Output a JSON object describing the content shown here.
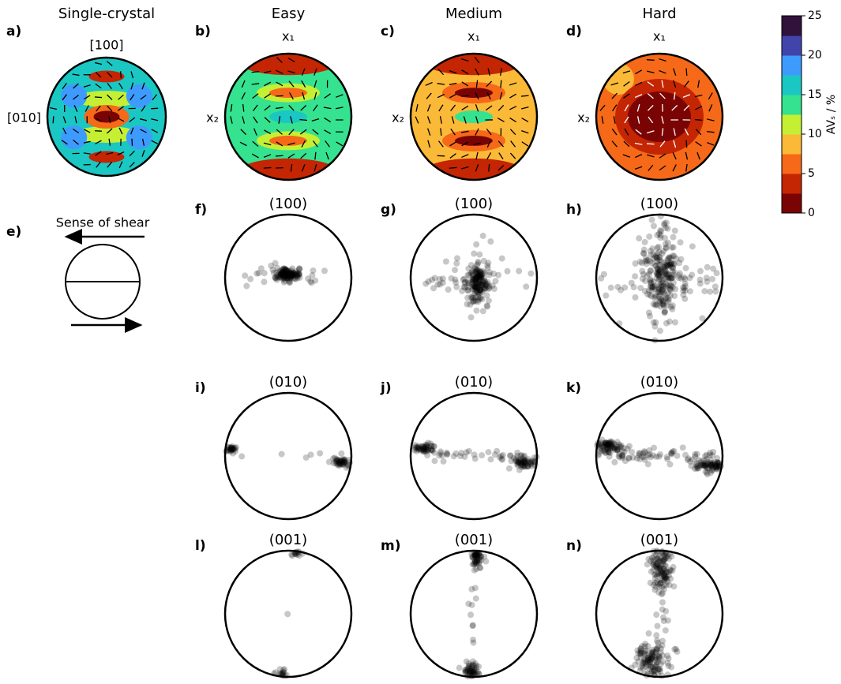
{
  "velocity_panels": [
    {
      "label": "a)",
      "title": "Single-crystal",
      "north": "[100]",
      "west": "[010]"
    },
    {
      "label": "b)",
      "title": "Easy",
      "north": "x₁",
      "west": "x₂"
    },
    {
      "label": "c)",
      "title": "Medium",
      "north": "x₁",
      "west": "x₂"
    },
    {
      "label": "d)",
      "title": "Hard",
      "north": "x₁",
      "west": "x₂"
    }
  ],
  "shear_panel": {
    "label": "e)",
    "title": "Sense of shear"
  },
  "pole_panels": [
    {
      "label": "f)",
      "title": "(100)"
    },
    {
      "label": "g)",
      "title": "(100)"
    },
    {
      "label": "h)",
      "title": "(100)"
    },
    {
      "label": "i)",
      "title": "(010)"
    },
    {
      "label": "j)",
      "title": "(010)"
    },
    {
      "label": "k)",
      "title": "(010)"
    },
    {
      "label": "l)",
      "title": "(001)"
    },
    {
      "label": "m)",
      "title": "(001)"
    },
    {
      "label": "n)",
      "title": "(001)"
    }
  ],
  "colorbar": {
    "label": "AVₛ / %",
    "lim": [
      0,
      25
    ],
    "ticks": [
      0,
      5,
      10,
      15,
      20,
      25
    ],
    "colors": [
      "#7a0403",
      "#c42503",
      "#f56918",
      "#fbb938",
      "#c5ef33",
      "#35e28f",
      "#1ac7c2",
      "#3e9bfe",
      "#4145ab",
      "#30123b"
    ]
  }
}
